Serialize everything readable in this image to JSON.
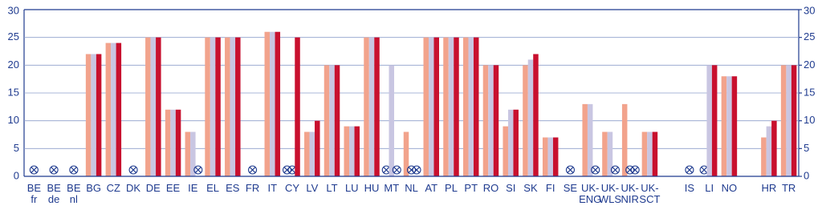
{
  "chart_data": {
    "type": "bar",
    "categories": [
      "BE\nfr",
      "BE\nde",
      "BE\nnl",
      "BG",
      "CZ",
      "DK",
      "DE",
      "EE",
      "IE",
      "EL",
      "ES",
      "FR",
      "IT",
      "CY",
      "LV",
      "LT",
      "LU",
      "HU",
      "MT",
      "NL",
      "AT",
      "PL",
      "PT",
      "RO",
      "SI",
      "SK",
      "FI",
      "SE",
      "UK-\nENG",
      "UK-\nWLS",
      "UK-\nNIR",
      "UK-\nSCT",
      null,
      "IS",
      "LI",
      "NO",
      null,
      "HR",
      "TR"
    ],
    "series": [
      {
        "color": "#f2a38c",
        "values": [
          null,
          null,
          null,
          22,
          24,
          null,
          25,
          12,
          8,
          25,
          25,
          null,
          26,
          null,
          8,
          20,
          9,
          25,
          null,
          8,
          25,
          25,
          25,
          20,
          9,
          20,
          7,
          null,
          13,
          8,
          13,
          8,
          null,
          null,
          null,
          18,
          null,
          7,
          20
        ]
      },
      {
        "color": "#c9c6e2",
        "values": [
          null,
          null,
          null,
          22,
          24,
          null,
          25,
          12,
          8,
          25,
          25,
          null,
          26,
          null,
          8,
          20,
          9,
          25,
          20,
          null,
          25,
          25,
          25,
          20,
          12,
          21,
          7,
          null,
          13,
          8,
          null,
          8,
          null,
          null,
          20,
          18,
          null,
          9,
          20
        ]
      },
      {
        "color": "#c8102e",
        "values": [
          null,
          null,
          null,
          22,
          24,
          null,
          25,
          12,
          null,
          25,
          25,
          null,
          26,
          25,
          10,
          20,
          9,
          25,
          null,
          null,
          25,
          25,
          25,
          20,
          12,
          22,
          7,
          null,
          null,
          null,
          null,
          8,
          null,
          null,
          20,
          18,
          null,
          10,
          20
        ]
      }
    ],
    "ylim": [
      0,
      30
    ],
    "yticks": [
      0,
      5,
      10,
      15,
      20,
      25,
      30
    ],
    "y2lim": [
      0,
      30
    ],
    "y2ticks": [
      0,
      5,
      10,
      15,
      20,
      25,
      30
    ],
    "grid": true
  }
}
